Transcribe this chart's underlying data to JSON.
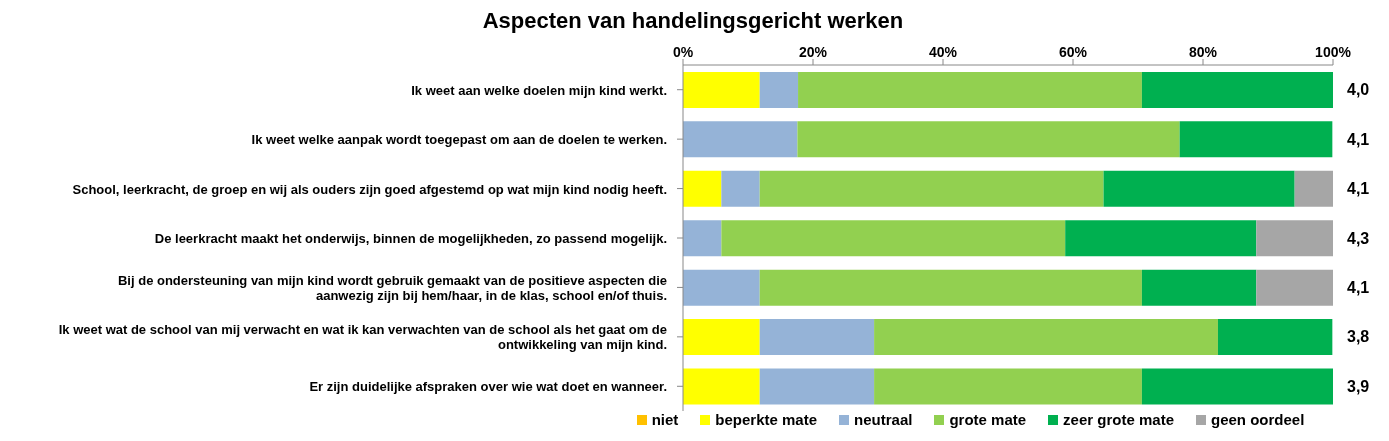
{
  "chart_data": {
    "type": "bar",
    "orientation": "horizontal",
    "stacked": true,
    "title": "Aspecten van handelingsgericht werken",
    "categories": [
      "Ik weet aan welke doelen mijn kind werkt.",
      "Ik weet welke aanpak wordt toegepast om aan de doelen te werken.",
      "School, leerkracht, de groep en wij als ouders zijn goed afgestemd op wat mijn kind nodig heeft.",
      "De leerkracht maakt het onderwijs, binnen de mogelijkheden, zo passend mogelijk.",
      "Bij de ondersteuning van mijn kind wordt gebruik gemaakt van de positieve aspecten die aanwezig zijn bij hem/haar, in de klas, school en/of thuis.",
      "Ik weet wat de school van mij verwacht en wat ik kan verwachten van de school als het gaat om de ontwikkeling van mijn kind.",
      "Er zijn duidelijke afspraken over wie wat doet en wanneer."
    ],
    "series": [
      {
        "name": "niet",
        "color": "#ffc000",
        "values": [
          0,
          0,
          0,
          0,
          0,
          0,
          0
        ]
      },
      {
        "name": "beperkte mate",
        "color": "#ffff00",
        "values": [
          11.8,
          0,
          5.9,
          0,
          0,
          11.8,
          11.8
        ]
      },
      {
        "name": "neutraal",
        "color": "#95b3d7",
        "values": [
          5.9,
          17.6,
          5.9,
          5.9,
          11.8,
          17.6,
          17.6
        ]
      },
      {
        "name": "grote mate",
        "color": "#92d050",
        "values": [
          52.9,
          58.8,
          52.9,
          52.9,
          58.8,
          52.9,
          41.2
        ]
      },
      {
        "name": "zeer grote mate",
        "color": "#00b050",
        "values": [
          29.4,
          23.5,
          29.4,
          29.4,
          17.6,
          17.6,
          29.4
        ]
      },
      {
        "name": "geen oordeel",
        "color": "#a6a6a6",
        "values": [
          0,
          0,
          5.9,
          11.8,
          11.8,
          0,
          0
        ]
      }
    ],
    "xlim": [
      0,
      100
    ],
    "xticks": [
      {
        "value": 0,
        "label": "0%"
      },
      {
        "value": 20,
        "label": "20%"
      },
      {
        "value": 40,
        "label": "40%"
      },
      {
        "value": 60,
        "label": "60%"
      },
      {
        "value": 80,
        "label": "80%"
      },
      {
        "value": 100,
        "label": "100%"
      }
    ],
    "annotations": [
      "4,0",
      "4,1",
      "4,1",
      "4,3",
      "4,1",
      "3,8",
      "3,9"
    ],
    "grid": false,
    "legend": "bottom"
  }
}
